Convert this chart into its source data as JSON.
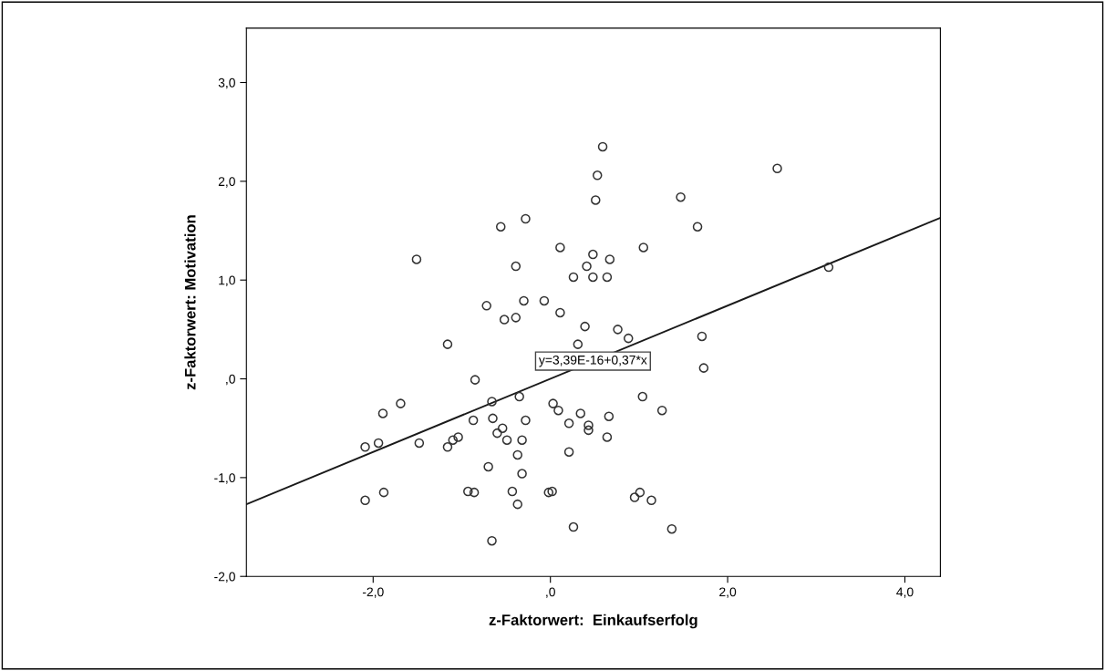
{
  "chart_data": {
    "type": "scatter",
    "xlabel": "z-Faktorwert:  Einkaufserfolg",
    "ylabel": "z-Faktorwert: Motivation",
    "xlim": [
      -3.43,
      4.4
    ],
    "ylim": [
      -2.0,
      3.55
    ],
    "xticks": [
      {
        "value": -2,
        "label": "-2,0"
      },
      {
        "value": 0,
        "label": ",0"
      },
      {
        "value": 2,
        "label": "2,0"
      },
      {
        "value": 4,
        "label": "4,0"
      }
    ],
    "yticks": [
      {
        "value": -2,
        "label": "-2,0"
      },
      {
        "value": -1,
        "label": "-1,0"
      },
      {
        "value": 0,
        "label": ",0"
      },
      {
        "value": 1,
        "label": "1,0"
      },
      {
        "value": 2,
        "label": "2,0"
      },
      {
        "value": 3,
        "label": "3,0"
      }
    ],
    "grid": false,
    "legend": false,
    "series": [
      {
        "color": "#333333",
        "marker": "circle",
        "x": [
          -1.51,
          -0.56,
          -0.28,
          0.11,
          -0.39,
          -0.72,
          -0.3,
          -0.07,
          -0.52,
          -0.39,
          0.11,
          -1.16,
          0.59,
          0.53,
          0.51,
          1.47,
          1.66,
          0.48,
          0.67,
          1.05,
          0.41,
          0.26,
          0.48,
          0.64,
          0.39,
          0.76,
          0.88,
          1.71,
          0.31,
          -0.85,
          -1.69,
          -1.89,
          -0.66,
          -0.35,
          0.03,
          0.09,
          -2.09,
          -1.94,
          -1.48,
          -1.16,
          -1.1,
          -1.04,
          -0.87,
          -0.65,
          -0.54,
          -0.6,
          -0.49,
          -0.32,
          -0.28,
          -0.37,
          -0.7,
          -0.32,
          -2.09,
          -1.88,
          -0.93,
          -0.86,
          -0.43,
          -0.37,
          -0.02,
          0.02,
          -0.66,
          1.73,
          1.04,
          1.26,
          0.34,
          0.66,
          0.21,
          0.43,
          0.43,
          0.64,
          0.21,
          1.01,
          0.95,
          1.14,
          0.26,
          1.37,
          2.56,
          3.14
        ],
        "values": [
          1.21,
          1.54,
          1.62,
          1.33,
          1.14,
          0.74,
          0.79,
          0.79,
          0.6,
          0.62,
          0.67,
          0.35,
          2.35,
          2.06,
          1.81,
          1.84,
          1.54,
          1.26,
          1.21,
          1.33,
          1.14,
          1.03,
          1.03,
          1.03,
          0.53,
          0.5,
          0.41,
          0.43,
          0.35,
          -0.01,
          -0.25,
          -0.35,
          -0.23,
          -0.18,
          -0.25,
          -0.32,
          -0.69,
          -0.65,
          -0.65,
          -0.69,
          -0.62,
          -0.59,
          -0.42,
          -0.4,
          -0.5,
          -0.55,
          -0.62,
          -0.62,
          -0.42,
          -0.77,
          -0.89,
          -0.96,
          -1.23,
          -1.15,
          -1.14,
          -1.15,
          -1.14,
          -1.27,
          -1.15,
          -1.14,
          -1.64,
          0.11,
          -0.18,
          -0.32,
          -0.35,
          -0.38,
          -0.45,
          -0.47,
          -0.52,
          -0.59,
          -0.74,
          -1.15,
          -1.2,
          -1.23,
          -1.5,
          -1.52,
          2.13,
          1.13
        ]
      },
      {
        "type": "line",
        "color": "#1a1a1a",
        "line_style": "solid",
        "x": [
          -3.43,
          4.4
        ],
        "values": [
          -1.27,
          1.63
        ]
      }
    ],
    "annotations": [
      {
        "text": "y=3,39E-16+0,37*x",
        "x": 0.48,
        "y": 0.18
      }
    ]
  }
}
